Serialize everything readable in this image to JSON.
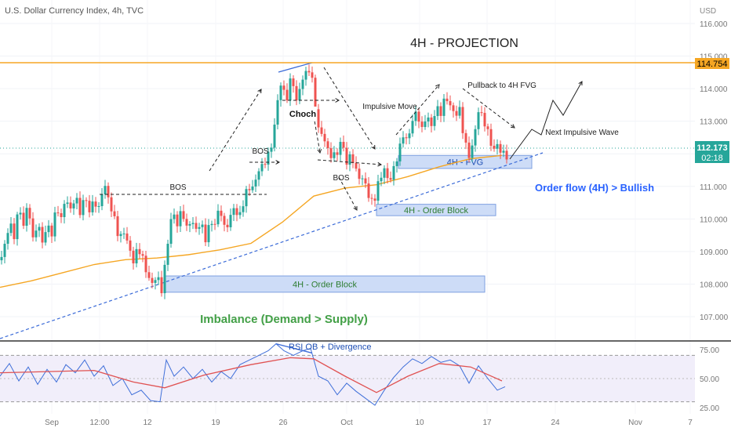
{
  "header": {
    "symbol_title": "U.S. Dollar Currency Index, 4h, TVC"
  },
  "chart_data": [
    {
      "type": "candlestick",
      "title": "4H - PROJECTION",
      "currency_label": "USD",
      "ylim": [
        106.5,
        116.4
      ],
      "y_ticks": [
        107,
        108,
        109,
        110,
        111,
        112,
        113,
        114,
        115,
        116
      ],
      "y_tick_labels": [
        "107.000",
        "108.000",
        "109.000",
        "110.000",
        "111.000",
        "112.000",
        "113.000",
        "114.000",
        "115.000",
        "116.000"
      ],
      "x_tick_labels": [
        "Sep",
        "12:00",
        "12",
        "19",
        "26",
        "Oct",
        "10",
        "17",
        "24",
        "Nov",
        "7"
      ],
      "current_price": "112.173",
      "countdown": "02:18",
      "high_level": "114.754",
      "colors": {
        "up": "#26a69a",
        "down": "#ef5350",
        "ma": "#f5a623",
        "level": "#f5a623",
        "trend": "#3b6bd8",
        "zone_fill": "#cddcf7",
        "zone_stroke": "#7ea0e0",
        "zone_text": "#2e7d32",
        "price_tag": "#26a69a",
        "annot_green": "#43a047",
        "annot_blue": "#2962ff"
      },
      "price_path": [
        [
          0,
          108.7
        ],
        [
          6,
          109.3
        ],
        [
          12,
          110.1
        ],
        [
          18,
          109.6
        ],
        [
          24,
          110.4
        ],
        [
          30,
          109.7
        ],
        [
          36,
          110.3
        ],
        [
          42,
          109.2
        ],
        [
          48,
          109.9
        ],
        [
          54,
          109.4
        ],
        [
          60,
          110.0
        ],
        [
          66,
          109.7
        ],
        [
          72,
          110.4
        ],
        [
          78,
          109.9
        ],
        [
          84,
          110.5
        ],
        [
          90,
          110.1
        ],
        [
          96,
          110.7
        ],
        [
          102,
          110.3
        ],
        [
          108,
          110.9
        ],
        [
          114,
          110.4
        ],
        [
          120,
          110.6
        ],
        [
          126,
          110.2
        ],
        [
          132,
          110.9
        ],
        [
          136,
          110.7
        ],
        [
          140,
          110.3
        ],
        [
          146,
          110.0
        ],
        [
          152,
          109.5
        ],
        [
          158,
          109.8
        ],
        [
          164,
          109.3
        ],
        [
          170,
          108.7
        ],
        [
          176,
          109.0
        ],
        [
          182,
          108.6
        ],
        [
          188,
          108.1
        ],
        [
          194,
          108.0
        ],
        [
          200,
          108.4
        ],
        [
          206,
          108.0
        ],
        [
          212,
          109.0
        ],
        [
          216,
          109.8
        ],
        [
          220,
          110.2
        ],
        [
          226,
          109.7
        ],
        [
          232,
          110.1
        ],
        [
          238,
          109.6
        ],
        [
          244,
          110.0
        ],
        [
          250,
          109.8
        ],
        [
          256,
          110.1
        ],
        [
          262,
          109.5
        ],
        [
          268,
          109.9
        ],
        [
          274,
          109.7
        ],
        [
          280,
          110.2
        ],
        [
          286,
          109.6
        ],
        [
          292,
          109.9
        ],
        [
          298,
          110.5
        ],
        [
          304,
          110.2
        ],
        [
          310,
          110.6
        ],
        [
          316,
          111.0
        ],
        [
          322,
          110.8
        ],
        [
          328,
          111.2
        ],
        [
          334,
          111.5
        ],
        [
          340,
          111.8
        ],
        [
          346,
          112.4
        ],
        [
          352,
          113.3
        ],
        [
          356,
          114.4
        ],
        [
          360,
          114.1
        ],
        [
          366,
          113.7
        ],
        [
          372,
          114.3
        ],
        [
          378,
          113.4
        ],
        [
          384,
          114.1
        ],
        [
          390,
          114.5
        ],
        [
          396,
          114.8
        ],
        [
          400,
          114.0
        ],
        [
          406,
          112.9
        ],
        [
          412,
          112.6
        ],
        [
          418,
          112.0
        ],
        [
          424,
          111.7
        ],
        [
          430,
          111.9
        ],
        [
          436,
          112.4
        ],
        [
          442,
          111.8
        ],
        [
          448,
          112.2
        ],
        [
          454,
          111.6
        ],
        [
          460,
          111.3
        ],
        [
          466,
          111.0
        ],
        [
          472,
          110.3
        ],
        [
          478,
          110.5
        ],
        [
          484,
          111.2
        ],
        [
          490,
          111.6
        ],
        [
          496,
          111.3
        ],
        [
          502,
          111.7
        ],
        [
          508,
          112.1
        ],
        [
          514,
          112.5
        ],
        [
          520,
          112.2
        ],
        [
          526,
          112.9
        ],
        [
          532,
          113.2
        ],
        [
          538,
          112.8
        ],
        [
          544,
          113.4
        ],
        [
          550,
          113.0
        ],
        [
          556,
          113.5
        ],
        [
          562,
          113.2
        ],
        [
          568,
          113.6
        ],
        [
          574,
          113.3
        ],
        [
          580,
          113.1
        ],
        [
          586,
          113.4
        ],
        [
          592,
          112.6
        ],
        [
          598,
          112.1
        ],
        [
          604,
          112.5
        ],
        [
          610,
          113.3
        ],
        [
          616,
          112.9
        ],
        [
          622,
          112.5
        ],
        [
          628,
          112.0
        ],
        [
          634,
          112.3
        ],
        [
          640,
          112.2
        ],
        [
          646,
          112.1
        ]
      ],
      "ma_points": [
        [
          0,
          107.9
        ],
        [
          40,
          108.1
        ],
        [
          80,
          108.35
        ],
        [
          120,
          108.6
        ],
        [
          160,
          108.75
        ],
        [
          200,
          108.8
        ],
        [
          240,
          108.9
        ],
        [
          280,
          109.05
        ],
        [
          320,
          109.25
        ],
        [
          360,
          109.9
        ],
        [
          400,
          110.7
        ],
        [
          440,
          110.95
        ],
        [
          480,
          111.05
        ],
        [
          520,
          111.3
        ],
        [
          560,
          111.6
        ],
        [
          600,
          111.85
        ],
        [
          640,
          111.95
        ]
      ],
      "zones": [
        {
          "label": "4H - FVG",
          "ymin": 111.55,
          "ymax": 111.95,
          "x0": 508,
          "x1": 678
        },
        {
          "label": "4H - Order Block",
          "ymin": 110.1,
          "ymax": 110.45,
          "x0": 480,
          "x1": 632
        },
        {
          "label": "4H - Order Block",
          "ymin": 107.75,
          "ymax": 108.25,
          "x0": 210,
          "x1": 618
        }
      ],
      "annotations": [
        "BOS",
        "BOS",
        "BOS",
        "Choch",
        "Impulsive Move",
        "Pullback to 4H FVG",
        "Next Impulsive Wave"
      ],
      "bias_text": "Order flow (4H) > Bullish",
      "imbalance_text": "Imbalance (Demand > Supply)"
    },
    {
      "type": "line",
      "title": "RSI OB + Divergence",
      "ylim": [
        20,
        80
      ],
      "y_ticks": [
        25,
        50,
        75
      ],
      "y_tick_labels": [
        "25.00",
        "50.00",
        "75.00"
      ],
      "overbought": 70,
      "oversold": 30,
      "series": [
        {
          "values": [
            [
              0,
              52
            ],
            [
              12,
              63
            ],
            [
              24,
              48
            ],
            [
              36,
              60
            ],
            [
              48,
              45
            ],
            [
              60,
              58
            ],
            [
              72,
              47
            ],
            [
              84,
              62
            ],
            [
              96,
              55
            ],
            [
              108,
              66
            ],
            [
              120,
              52
            ],
            [
              132,
              61
            ],
            [
              144,
              44
            ],
            [
              156,
              50
            ],
            [
              168,
              36
            ],
            [
              180,
              40
            ],
            [
              192,
              31
            ],
            [
              204,
              30
            ],
            [
              212,
              66
            ],
            [
              222,
              52
            ],
            [
              234,
              60
            ],
            [
              246,
              50
            ],
            [
              258,
              58
            ],
            [
              270,
              47
            ],
            [
              282,
              56
            ],
            [
              294,
              50
            ],
            [
              306,
              62
            ],
            [
              318,
              66
            ],
            [
              330,
              70
            ],
            [
              342,
              74
            ],
            [
              352,
              80
            ],
            [
              362,
              74
            ],
            [
              374,
              70
            ],
            [
              386,
              74
            ],
            [
              396,
              76
            ],
            [
              406,
              52
            ],
            [
              418,
              48
            ],
            [
              430,
              36
            ],
            [
              442,
              46
            ],
            [
              454,
              39
            ],
            [
              466,
              33
            ],
            [
              478,
              27
            ],
            [
              490,
              40
            ],
            [
              502,
              51
            ],
            [
              514,
              60
            ],
            [
              526,
              67
            ],
            [
              538,
              63
            ],
            [
              550,
              69
            ],
            [
              562,
              64
            ],
            [
              574,
              66
            ],
            [
              586,
              61
            ],
            [
              598,
              46
            ],
            [
              610,
              61
            ],
            [
              622,
              50
            ],
            [
              634,
              40
            ],
            [
              644,
              43
            ]
          ]
        },
        {
          "values": [
            [
              0,
              55
            ],
            [
              60,
              56
            ],
            [
              120,
              57
            ],
            [
              170,
              47
            ],
            [
              210,
              42
            ],
            [
              260,
              53
            ],
            [
              320,
              62
            ],
            [
              370,
              68
            ],
            [
              400,
              67
            ],
            [
              440,
              52
            ],
            [
              480,
              38
            ],
            [
              520,
              52
            ],
            [
              560,
              63
            ],
            [
              600,
              60
            ],
            [
              640,
              48
            ]
          ]
        }
      ]
    }
  ]
}
